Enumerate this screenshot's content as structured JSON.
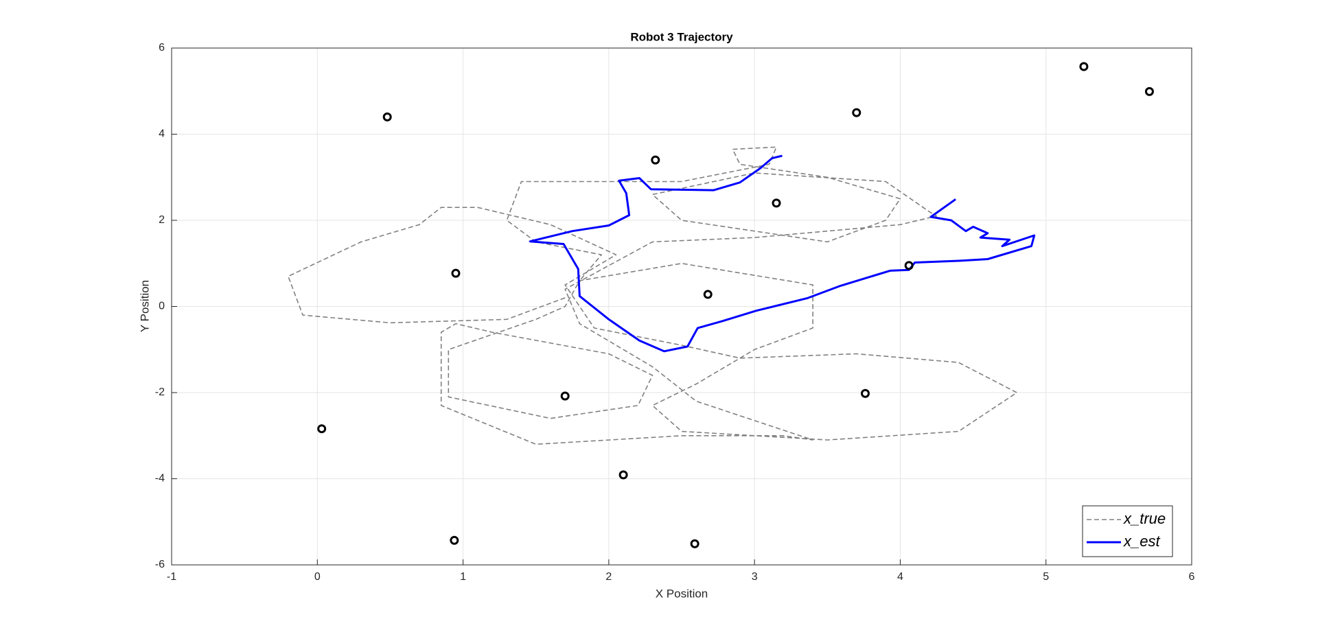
{
  "chart_data": {
    "type": "line",
    "title": "Robot 3 Trajectory",
    "x_label": "X Position",
    "y_label": "Y Position",
    "xlim": [
      -1,
      6
    ],
    "ylim": [
      -6,
      6
    ],
    "xticks": [
      -1,
      0,
      1,
      2,
      3,
      4,
      5,
      6
    ],
    "yticks": [
      -6,
      -4,
      -2,
      0,
      2,
      4,
      6
    ],
    "grid": true,
    "legend": "southeast",
    "series": [
      {
        "name": "x_true",
        "color": "#808080",
        "style": "dashed",
        "x": [
          1.7,
          1.3,
          0.5,
          -0.1,
          -0.2,
          0.3,
          0.7,
          0.85,
          1.1,
          1.6,
          2.05,
          1.7,
          1.9,
          2.5,
          2.9,
          3.7,
          4.4,
          4.8,
          4.4,
          3.5,
          2.5,
          2.3,
          2.6,
          3.0,
          3.4,
          3.4,
          2.5,
          1.8,
          1.7,
          1.5,
          0.9,
          0.9,
          1.6,
          2.2,
          2.3,
          2.0,
          1.2,
          0.95,
          0.85,
          0.85,
          1.5,
          2.5,
          3.2,
          3.4,
          2.6,
          2.3,
          1.8,
          1.7,
          2.3,
          3.0,
          4.0,
          4.25,
          4.2,
          3.9,
          3.0,
          2.3,
          2.5,
          3.5,
          3.9,
          4.0,
          3.5,
          2.9,
          2.85,
          3.15,
          3.1,
          2.5,
          1.4,
          1.3,
          1.5,
          1.95,
          1.8
        ],
        "values": [
          0.2,
          -0.3,
          -0.38,
          -0.2,
          0.7,
          1.5,
          1.9,
          2.3,
          2.3,
          1.9,
          1.2,
          0.5,
          -0.5,
          -0.9,
          -1.2,
          -1.1,
          -1.3,
          -2.0,
          -2.9,
          -3.1,
          -2.9,
          -2.3,
          -1.8,
          -1.0,
          -0.5,
          0.5,
          1.0,
          0.6,
          0.0,
          -0.3,
          -1.0,
          -2.1,
          -2.6,
          -2.3,
          -1.6,
          -1.1,
          -0.6,
          -0.4,
          -0.6,
          -2.3,
          -3.2,
          -3.0,
          -3.0,
          -3.1,
          -2.2,
          -1.4,
          -0.4,
          0.4,
          1.5,
          1.6,
          1.9,
          2.1,
          2.2,
          2.9,
          3.1,
          2.6,
          2.0,
          1.5,
          2.0,
          2.5,
          3.0,
          3.3,
          3.65,
          3.7,
          3.3,
          2.9,
          2.9,
          2.0,
          1.5,
          1.2,
          0.6
        ]
      },
      {
        "name": "x_est",
        "color": "#0000ff",
        "style": "solid",
        "x": [
          4.38,
          4.21,
          4.35,
          4.45,
          4.5,
          4.6,
          4.55,
          4.75,
          4.7,
          4.92,
          4.9,
          4.6,
          4.4,
          4.1,
          4.06,
          3.93,
          3.59,
          3.36,
          3.01,
          2.78,
          2.61,
          2.54,
          2.38,
          2.21,
          2.0,
          1.8,
          1.79,
          1.69,
          1.46,
          1.75,
          2.0,
          2.14,
          2.12,
          2.07,
          2.21,
          2.29,
          2.72,
          2.9,
          3.04,
          3.12,
          3.19
        ],
        "values": [
          2.49,
          2.08,
          2.0,
          1.75,
          1.85,
          1.7,
          1.6,
          1.55,
          1.4,
          1.65,
          1.4,
          1.1,
          1.06,
          1.02,
          0.85,
          0.83,
          0.48,
          0.19,
          -0.1,
          -0.34,
          -0.5,
          -0.93,
          -1.04,
          -0.79,
          -0.3,
          0.24,
          0.87,
          1.45,
          1.51,
          1.75,
          1.88,
          2.12,
          2.63,
          2.92,
          2.98,
          2.72,
          2.7,
          2.88,
          3.21,
          3.44,
          3.5
        ]
      },
      {
        "color": "#000000",
        "style": "markers",
        "x": [
          0.48,
          2.32,
          3.7,
          5.26,
          5.71,
          3.15,
          0.95,
          2.68,
          4.06,
          1.7,
          3.76,
          0.03,
          2.1,
          0.94,
          2.59
        ],
        "values": [
          4.4,
          3.4,
          4.5,
          5.57,
          4.99,
          2.4,
          0.77,
          0.28,
          0.95,
          -2.08,
          -2.02,
          -2.84,
          -3.91,
          -5.43,
          -5.51
        ]
      }
    ]
  }
}
